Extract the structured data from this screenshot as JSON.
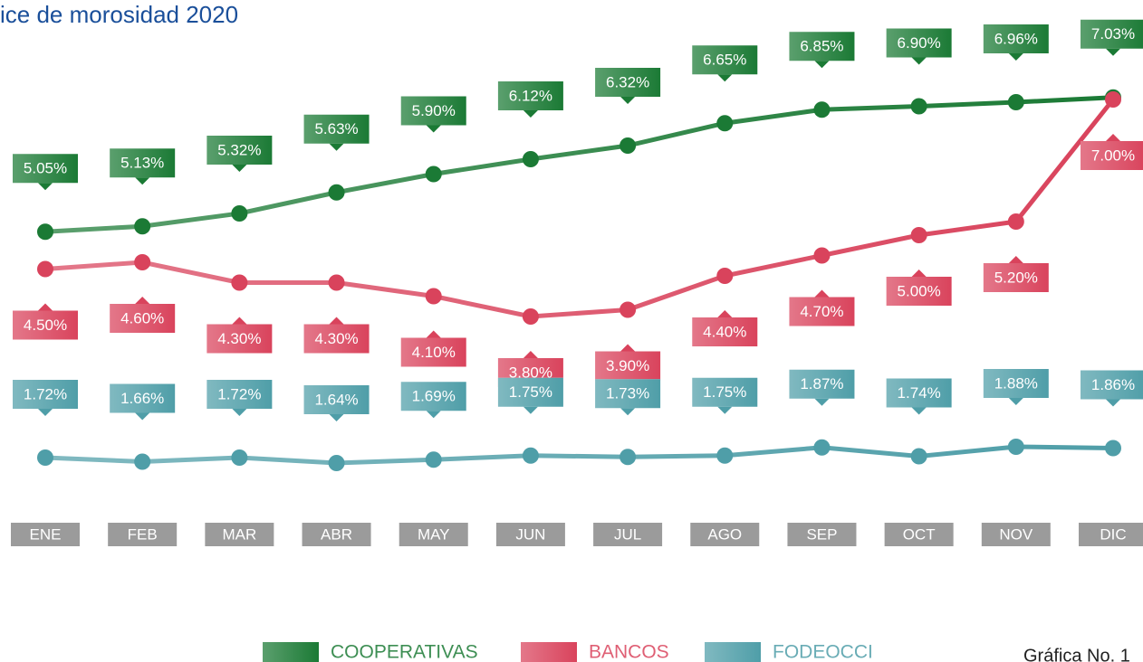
{
  "chart_data": {
    "type": "line",
    "title": "ice de morosidad 2020",
    "note": "Gráfica No. 1",
    "categories": [
      "ENE",
      "FEB",
      "MAR",
      "ABR",
      "MAY",
      "JUN",
      "JUL",
      "AGO",
      "SEP",
      "OCT",
      "NOV",
      "DIC"
    ],
    "ylim": [
      1,
      7.4
    ],
    "series": [
      {
        "name": "COOPERATIVAS",
        "color": "#1b7a35",
        "label_side": "above",
        "values": [
          5.05,
          5.13,
          5.32,
          5.63,
          5.9,
          6.12,
          6.32,
          6.65,
          6.85,
          6.9,
          6.96,
          7.03
        ],
        "value_labels": [
          "5.05%",
          "5.13%",
          "5.32%",
          "5.63%",
          "5.90%",
          "6.12%",
          "6.32%",
          "6.65%",
          "6.85%",
          "6.90%",
          "6.96%",
          "7.03%"
        ]
      },
      {
        "name": "BANCOS",
        "color": "#d9435c",
        "label_side": "below",
        "values": [
          4.5,
          4.6,
          4.3,
          4.3,
          4.1,
          3.8,
          3.9,
          4.4,
          4.7,
          5.0,
          5.2,
          7.0
        ],
        "value_labels": [
          "4.50%",
          "4.60%",
          "4.30%",
          "4.30%",
          "4.10%",
          "3.80%",
          "3.90%",
          "4.40%",
          "4.70%",
          "5.00%",
          "5.20%",
          "7.00%"
        ]
      },
      {
        "name": "FODEOCCI",
        "color": "#4f9ea8",
        "label_side": "above",
        "values": [
          1.72,
          1.66,
          1.72,
          1.64,
          1.69,
          1.75,
          1.73,
          1.75,
          1.87,
          1.74,
          1.88,
          1.86
        ],
        "value_labels": [
          "1.72%",
          "1.66%",
          "1.72%",
          "1.64%",
          "1.69%",
          "1.75%",
          "1.73%",
          "1.75%",
          "1.87%",
          "1.74%",
          "1.88%",
          "1.86%"
        ]
      }
    ]
  }
}
